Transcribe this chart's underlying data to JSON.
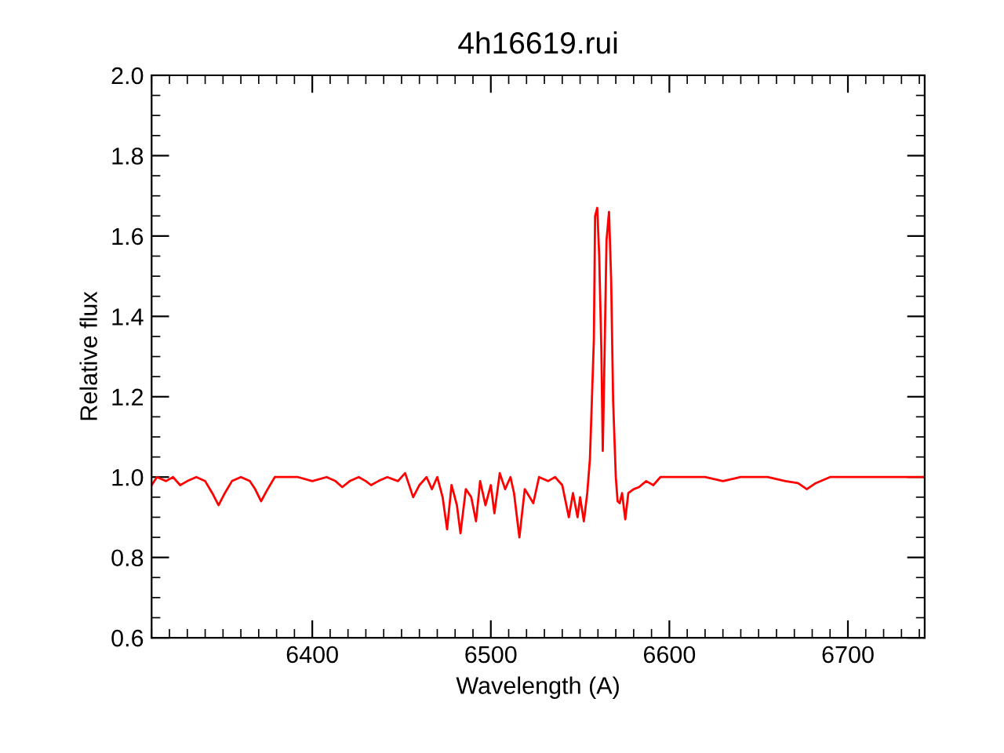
{
  "chart_data": {
    "type": "line",
    "title": "4h16619.rui",
    "xlabel": "Wavelength (A)",
    "ylabel": "Relative flux",
    "x": [
      6310,
      6313,
      6318,
      6322,
      6326,
      6330,
      6335,
      6340,
      6344,
      6347.5,
      6351,
      6355,
      6360,
      6365,
      6368,
      6371.3,
      6375,
      6379,
      6385,
      6392,
      6400,
      6408,
      6413,
      6416.8,
      6421,
      6426,
      6430,
      6432.9,
      6437,
      6442,
      6448,
      6452,
      6456.5,
      6460,
      6464,
      6467,
      6470,
      6473,
      6475.5,
      6478,
      6481,
      6483,
      6486,
      6489,
      6491.7,
      6494,
      6497,
      6500,
      6502,
      6505,
      6508,
      6511,
      6513,
      6516,
      6519,
      6523.8,
      6527,
      6532,
      6536,
      6540,
      6543.7,
      6546,
      6548.6,
      6550,
      6552.1,
      6554,
      6555.5,
      6557.7,
      6558.4,
      6559.6,
      6560.7,
      6561.9,
      6562.7,
      6563.6,
      6564.8,
      6566.2,
      6567.4,
      6568.5,
      6570,
      6571,
      6572.2,
      6573.5,
      6575.3,
      6577,
      6580,
      6583,
      6587,
      6591,
      6595,
      6605,
      6620,
      6630,
      6640,
      6655,
      6665,
      6672,
      6677,
      6682,
      6690,
      6705,
      6720,
      6735,
      6743
    ],
    "series": [
      {
        "color": "#ff0000",
        "values": [
          0.98,
          1.0,
          0.99,
          1.0,
          0.98,
          0.99,
          1.0,
          0.99,
          0.96,
          0.93,
          0.96,
          0.99,
          1.0,
          0.99,
          0.97,
          0.94,
          0.97,
          1.0,
          1.0,
          1.0,
          0.99,
          1.0,
          0.99,
          0.975,
          0.99,
          1.0,
          0.99,
          0.98,
          0.99,
          1.0,
          0.99,
          1.01,
          0.95,
          0.98,
          1.0,
          0.97,
          1.0,
          0.95,
          0.87,
          0.98,
          0.93,
          0.86,
          0.97,
          0.95,
          0.89,
          0.99,
          0.93,
          0.98,
          0.91,
          1.01,
          0.97,
          1.0,
          0.96,
          0.85,
          0.97,
          0.935,
          1.0,
          0.99,
          1.0,
          0.98,
          0.9,
          0.96,
          0.9,
          0.95,
          0.89,
          0.96,
          1.045,
          1.34,
          1.65,
          1.67,
          1.55,
          1.32,
          1.065,
          1.28,
          1.59,
          1.66,
          1.49,
          1.19,
          1.0,
          0.94,
          0.935,
          0.96,
          0.895,
          0.96,
          0.97,
          0.975,
          0.99,
          0.98,
          1.0,
          1.0,
          1.0,
          0.99,
          1.0,
          1.0,
          0.99,
          0.985,
          0.97,
          0.985,
          1.0,
          1.0,
          1.0,
          1.0,
          1.0
        ]
      }
    ],
    "xlim": [
      6310,
      6743
    ],
    "xticks": [
      6400,
      6500,
      6600,
      6700
    ],
    "ylim": [
      0.6,
      2.0
    ],
    "yticks": [
      0.6,
      0.8,
      {
        "value": 1,
        "label": "1.0"
      },
      1.2,
      1.4,
      1.6,
      1.8,
      {
        "value": 2,
        "label": "2.0"
      }
    ],
    "grid": false,
    "legend": false
  }
}
